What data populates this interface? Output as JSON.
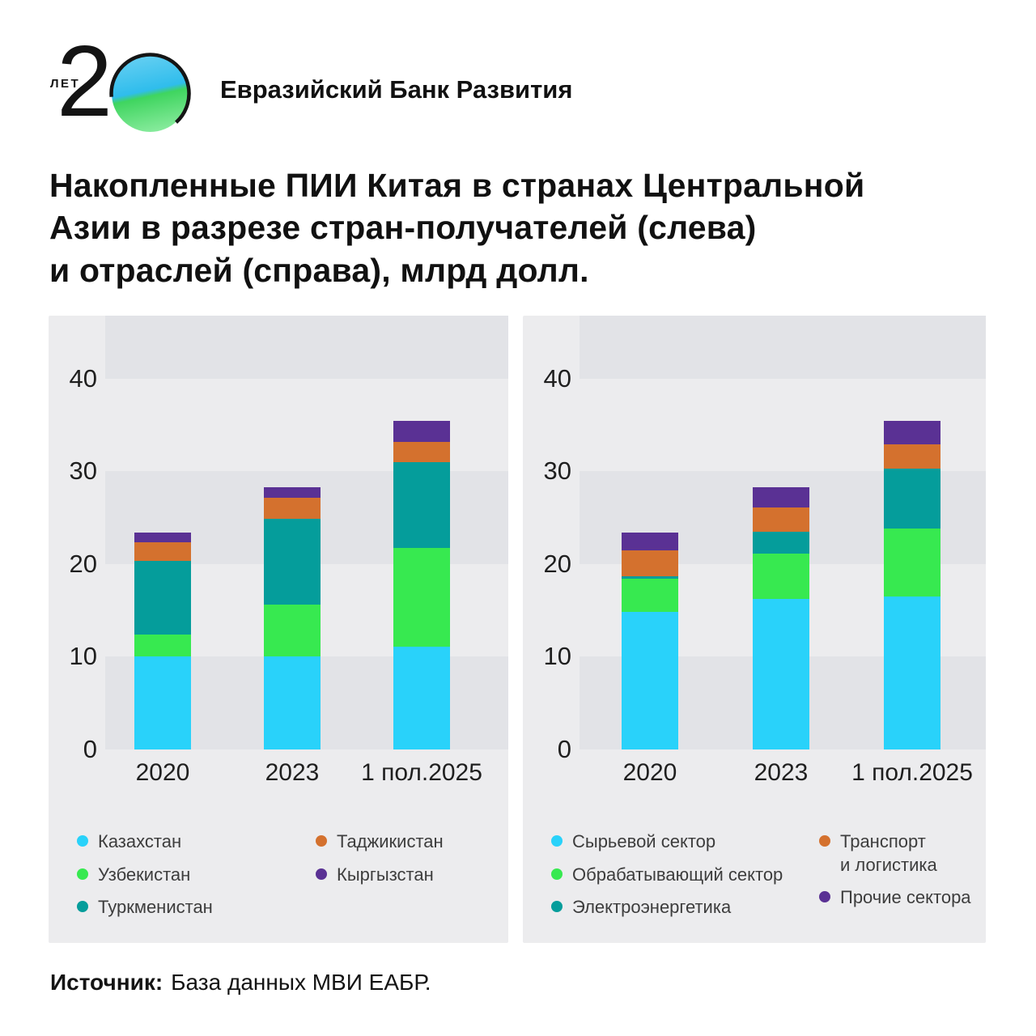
{
  "header": {
    "logo_years_label": "ЛЕТ",
    "logo_number": "2",
    "bank_name": "Евразийский Банк Развития"
  },
  "title": "Накопленные ПИИ Китая в странах Центральной\nАзии в разрезе стран-получателей (слева)\nи отраслей (справа), млрд долл.",
  "source": {
    "label": "Источник:",
    "text": "База данных МВИ ЕАБР."
  },
  "colors": {
    "panel_background": "#ececee",
    "band_dark": "#e2e3e7",
    "cyan": "#29d2fa",
    "green": "#37e950",
    "teal": "#059d9b",
    "orange": "#d4712e",
    "purple": "#5a3194",
    "logo_blue": "#2fbdec",
    "logo_green": "#3fd55f"
  },
  "chart_data": [
    {
      "type": "bar",
      "stacked": true,
      "categories": [
        "2020",
        "2023",
        "1 пол.2025"
      ],
      "series": [
        {
          "name": "Казахстан",
          "color": "#29d2fa",
          "values": [
            10.0,
            10.0,
            11.1
          ]
        },
        {
          "name": "Узбекистан",
          "color": "#37e950",
          "values": [
            2.4,
            5.6,
            10.6
          ]
        },
        {
          "name": "Туркменистан",
          "color": "#059d9b",
          "values": [
            7.9,
            9.3,
            9.3
          ]
        },
        {
          "name": "Таджикистан",
          "color": "#d4712e",
          "values": [
            2.0,
            2.2,
            2.2
          ]
        },
        {
          "name": "Кыргызстан",
          "color": "#5a3194",
          "values": [
            1.1,
            1.2,
            2.2
          ]
        }
      ],
      "ylim": [
        0,
        46.8
      ],
      "yticks": [
        0,
        10,
        20,
        30,
        40
      ],
      "grid": "horizontal-bands",
      "legend_position": "bottom",
      "legend_columns": [
        [
          "Казахстан",
          "Узбекистан",
          "Туркменистан"
        ],
        [
          "Таджикистан",
          "Кыргызстан"
        ]
      ]
    },
    {
      "type": "bar",
      "stacked": true,
      "categories": [
        "2020",
        "2023",
        "1 пол.2025"
      ],
      "series": [
        {
          "name": "Сырьевой сектор",
          "color": "#29d2fa",
          "values": [
            14.8,
            16.2,
            16.5
          ]
        },
        {
          "name": "Обрабатывающий сектор",
          "color": "#37e950",
          "values": [
            3.6,
            4.9,
            7.3
          ]
        },
        {
          "name": "Электроэнергетика",
          "color": "#059d9b",
          "values": [
            0.3,
            2.4,
            6.5
          ]
        },
        {
          "name": "Транспорт и логистика",
          "color": "#d4712e",
          "values": [
            2.8,
            2.6,
            2.6
          ]
        },
        {
          "name": "Прочие сектора",
          "color": "#5a3194",
          "values": [
            1.9,
            2.2,
            2.5
          ]
        }
      ],
      "ylim": [
        0,
        46.8
      ],
      "yticks": [
        0,
        10,
        20,
        30,
        40
      ],
      "grid": "horizontal-bands",
      "legend_position": "bottom",
      "legend_columns": [
        [
          "Сырьевой сектор",
          "Обрабатывающий сектор",
          "Электроэнергетика"
        ],
        [
          "Транспорт\nи логистика",
          "Прочие сектора"
        ]
      ]
    }
  ]
}
